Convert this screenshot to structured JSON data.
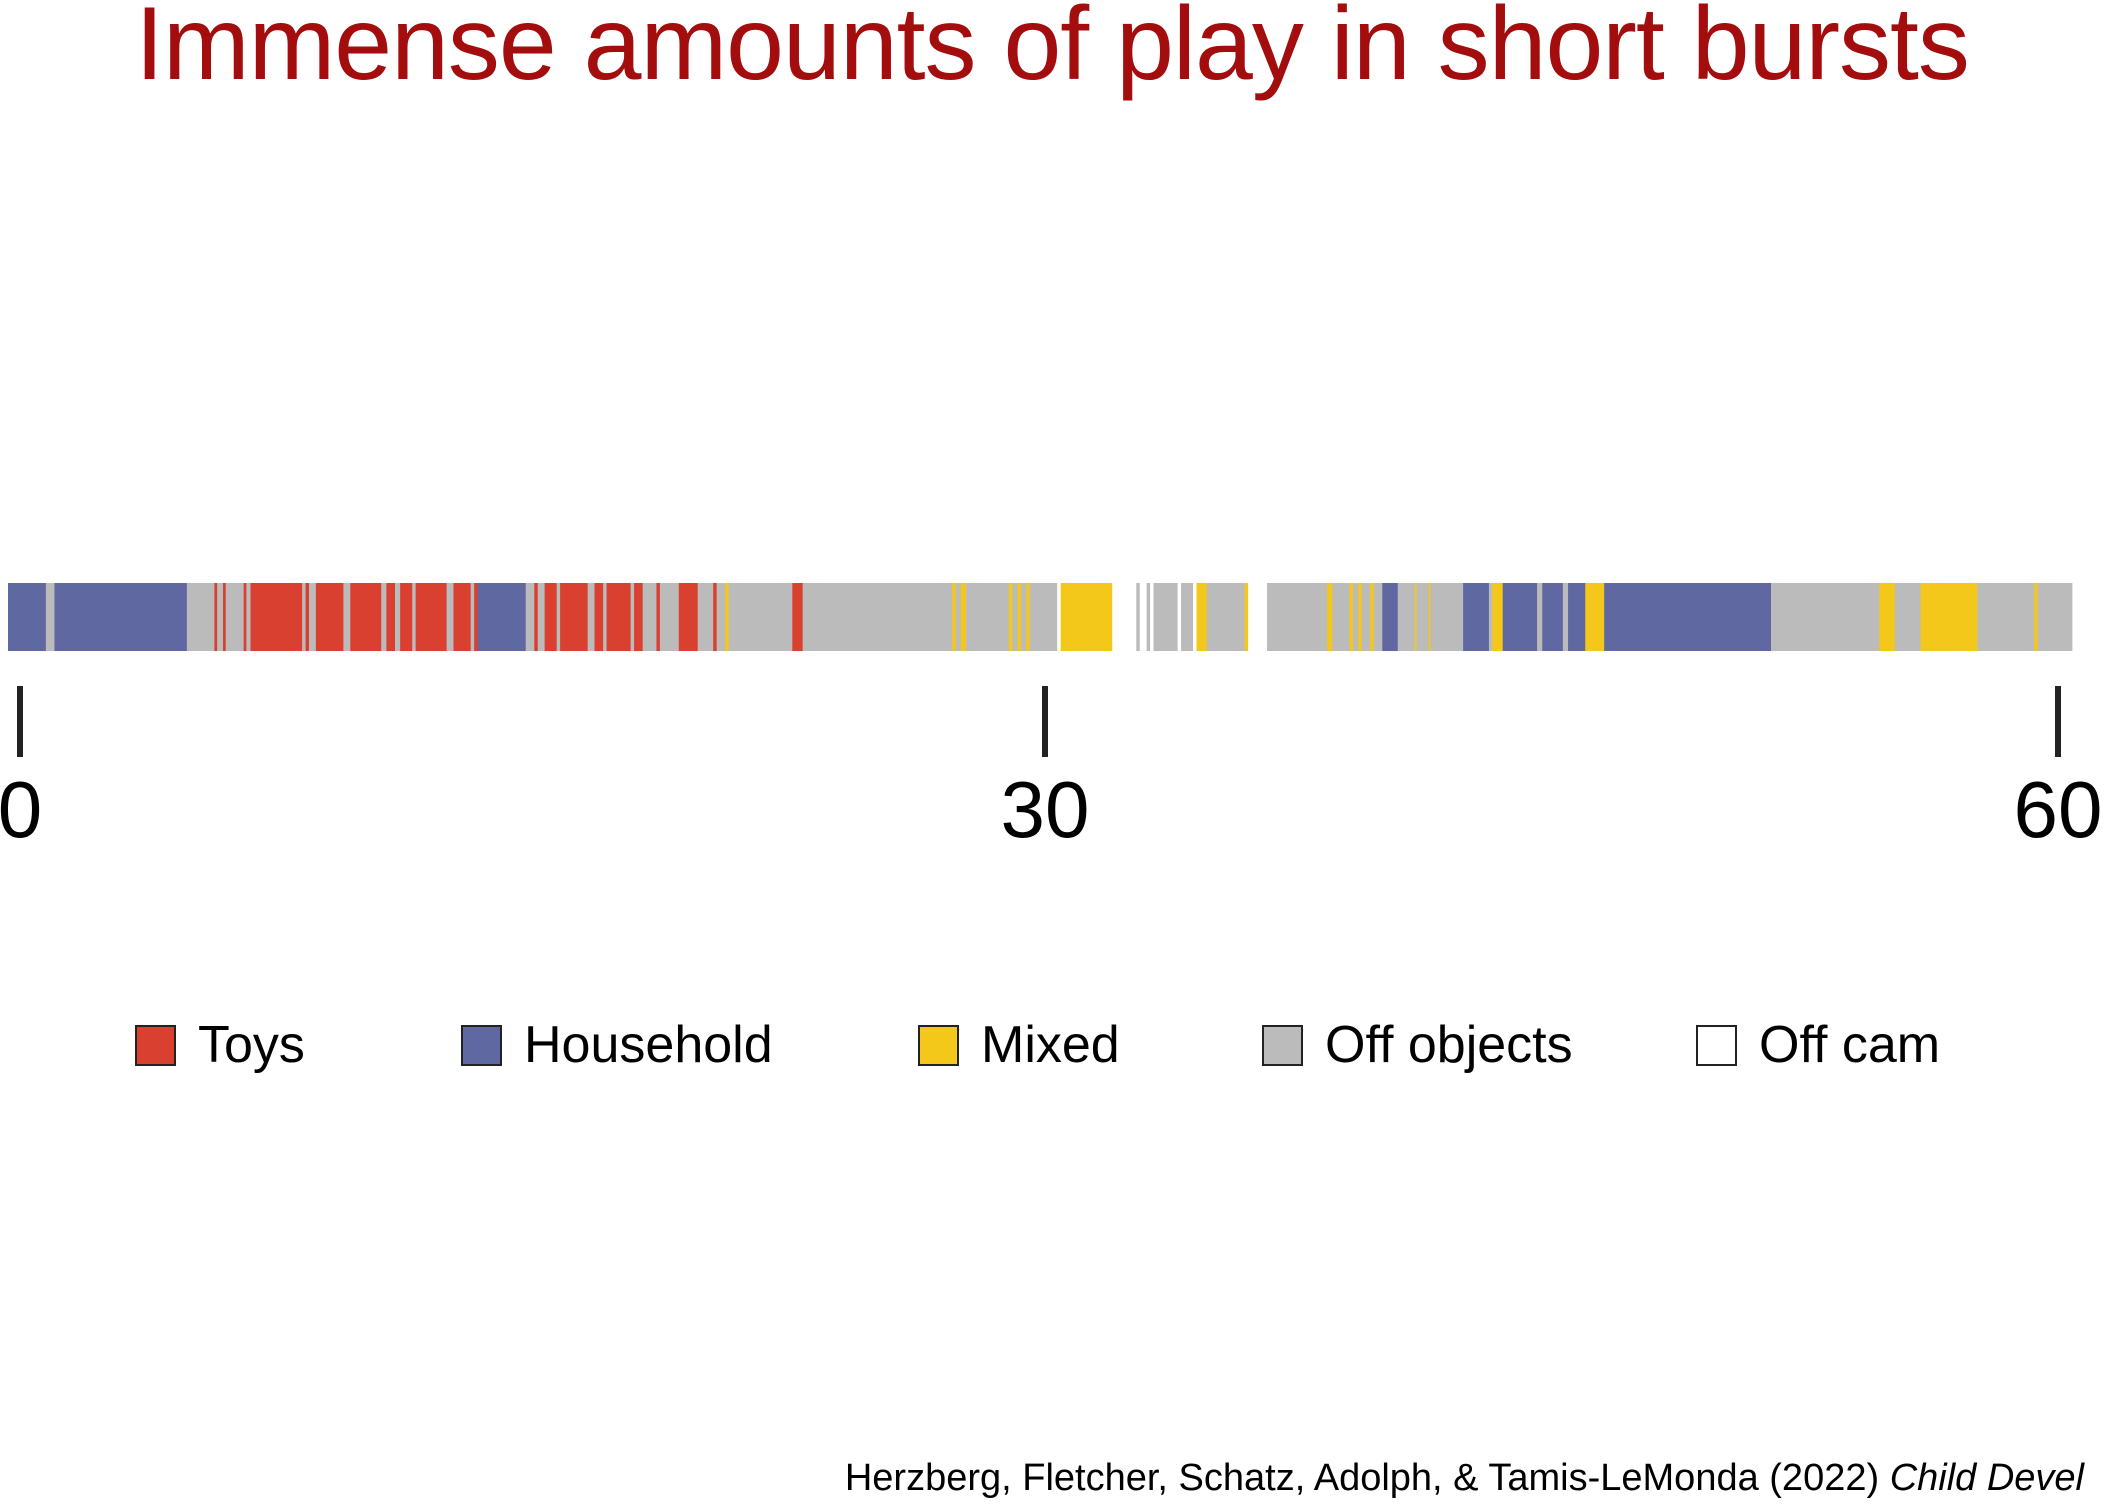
{
  "title": "Immense amounts of play in short bursts",
  "colors": {
    "title": "#a30d0d",
    "Toys": "#d94030",
    "Household": "#6068a2",
    "Mixed": "#f4c81a",
    "Off objects": "#bbbbbb",
    "Off cam": "#ffffff",
    "tick": "#222222"
  },
  "citation": {
    "authors": "Herzberg, Fletcher, Schatz, Adolph, & Tamis-LeMonda (2022)",
    "journal": "Child Devel"
  },
  "chart_data": {
    "type": "bar",
    "orientation": "horizontal",
    "xlim": [
      0,
      60
    ],
    "xticks": [
      0,
      30,
      60
    ],
    "xlabel": "",
    "ylabel": "",
    "legend": [
      "Toys",
      "Household",
      "Mixed",
      "Off objects",
      "Off cam"
    ],
    "legend_placement": "bottom",
    "segments": [
      {
        "start": 0.0,
        "end": 1.1,
        "category": "Household"
      },
      {
        "start": 1.1,
        "end": 1.35,
        "category": "Off objects"
      },
      {
        "start": 1.35,
        "end": 5.2,
        "category": "Household"
      },
      {
        "start": 5.2,
        "end": 6.0,
        "category": "Off objects"
      },
      {
        "start": 6.0,
        "end": 6.08,
        "category": "Toys"
      },
      {
        "start": 6.08,
        "end": 6.25,
        "category": "Off objects"
      },
      {
        "start": 6.25,
        "end": 6.33,
        "category": "Toys"
      },
      {
        "start": 6.33,
        "end": 6.85,
        "category": "Off objects"
      },
      {
        "start": 6.85,
        "end": 6.93,
        "category": "Toys"
      },
      {
        "start": 6.93,
        "end": 7.05,
        "category": "Off objects"
      },
      {
        "start": 7.05,
        "end": 8.55,
        "category": "Toys"
      },
      {
        "start": 8.55,
        "end": 8.65,
        "category": "Off objects"
      },
      {
        "start": 8.65,
        "end": 8.75,
        "category": "Toys"
      },
      {
        "start": 8.75,
        "end": 8.95,
        "category": "Off objects"
      },
      {
        "start": 8.95,
        "end": 9.75,
        "category": "Toys"
      },
      {
        "start": 9.75,
        "end": 9.95,
        "category": "Off objects"
      },
      {
        "start": 9.95,
        "end": 10.85,
        "category": "Toys"
      },
      {
        "start": 10.85,
        "end": 11.0,
        "category": "Off objects"
      },
      {
        "start": 11.0,
        "end": 11.25,
        "category": "Toys"
      },
      {
        "start": 11.25,
        "end": 11.4,
        "category": "Off objects"
      },
      {
        "start": 11.4,
        "end": 11.75,
        "category": "Toys"
      },
      {
        "start": 11.75,
        "end": 11.85,
        "category": "Off objects"
      },
      {
        "start": 11.85,
        "end": 12.75,
        "category": "Toys"
      },
      {
        "start": 12.75,
        "end": 12.95,
        "category": "Off objects"
      },
      {
        "start": 12.95,
        "end": 13.45,
        "category": "Toys"
      },
      {
        "start": 13.45,
        "end": 13.55,
        "category": "Off objects"
      },
      {
        "start": 13.55,
        "end": 13.65,
        "category": "Toys"
      },
      {
        "start": 13.65,
        "end": 15.05,
        "category": "Household"
      },
      {
        "start": 15.05,
        "end": 15.3,
        "category": "Off objects"
      },
      {
        "start": 15.3,
        "end": 15.4,
        "category": "Toys"
      },
      {
        "start": 15.4,
        "end": 15.6,
        "category": "Off objects"
      },
      {
        "start": 15.6,
        "end": 15.95,
        "category": "Toys"
      },
      {
        "start": 15.95,
        "end": 16.05,
        "category": "Off objects"
      },
      {
        "start": 16.05,
        "end": 16.85,
        "category": "Toys"
      },
      {
        "start": 16.85,
        "end": 17.05,
        "category": "Off objects"
      },
      {
        "start": 17.05,
        "end": 17.3,
        "category": "Toys"
      },
      {
        "start": 17.3,
        "end": 17.4,
        "category": "Off objects"
      },
      {
        "start": 17.4,
        "end": 18.1,
        "category": "Toys"
      },
      {
        "start": 18.1,
        "end": 18.2,
        "category": "Off objects"
      },
      {
        "start": 18.2,
        "end": 18.45,
        "category": "Toys"
      },
      {
        "start": 18.45,
        "end": 18.85,
        "category": "Off objects"
      },
      {
        "start": 18.85,
        "end": 18.95,
        "category": "Toys"
      },
      {
        "start": 18.95,
        "end": 19.5,
        "category": "Off objects"
      },
      {
        "start": 19.5,
        "end": 20.05,
        "category": "Toys"
      },
      {
        "start": 20.05,
        "end": 20.5,
        "category": "Off objects"
      },
      {
        "start": 20.5,
        "end": 20.6,
        "category": "Toys"
      },
      {
        "start": 20.6,
        "end": 20.85,
        "category": "Off objects"
      },
      {
        "start": 20.85,
        "end": 20.95,
        "category": "Mixed"
      },
      {
        "start": 20.95,
        "end": 22.8,
        "category": "Off objects"
      },
      {
        "start": 22.8,
        "end": 23.1,
        "category": "Toys"
      },
      {
        "start": 23.1,
        "end": 27.45,
        "category": "Off objects"
      },
      {
        "start": 27.45,
        "end": 27.55,
        "category": "Mixed"
      },
      {
        "start": 27.55,
        "end": 27.7,
        "category": "Off objects"
      },
      {
        "start": 27.7,
        "end": 27.85,
        "category": "Mixed"
      },
      {
        "start": 27.85,
        "end": 29.1,
        "category": "Off objects"
      },
      {
        "start": 29.1,
        "end": 29.2,
        "category": "Mixed"
      },
      {
        "start": 29.2,
        "end": 29.35,
        "category": "Off objects"
      },
      {
        "start": 29.35,
        "end": 29.45,
        "category": "Mixed"
      },
      {
        "start": 29.45,
        "end": 29.6,
        "category": "Off objects"
      },
      {
        "start": 29.6,
        "end": 29.7,
        "category": "Mixed"
      },
      {
        "start": 29.7,
        "end": 30.5,
        "category": "Off objects"
      },
      {
        "start": 30.5,
        "end": 30.6,
        "category": "Off cam"
      },
      {
        "start": 30.6,
        "end": 32.1,
        "category": "Mixed"
      },
      {
        "start": 32.1,
        "end": 32.8,
        "category": "Off cam"
      },
      {
        "start": 32.8,
        "end": 32.9,
        "category": "Off objects"
      },
      {
        "start": 32.9,
        "end": 33.1,
        "category": "Off cam"
      },
      {
        "start": 33.1,
        "end": 33.2,
        "category": "Off objects"
      },
      {
        "start": 33.2,
        "end": 33.3,
        "category": "Off cam"
      },
      {
        "start": 33.3,
        "end": 34.0,
        "category": "Off objects"
      },
      {
        "start": 34.0,
        "end": 34.1,
        "category": "Off cam"
      },
      {
        "start": 34.1,
        "end": 34.45,
        "category": "Off objects"
      },
      {
        "start": 34.45,
        "end": 34.55,
        "category": "Off cam"
      },
      {
        "start": 34.55,
        "end": 34.85,
        "category": "Mixed"
      },
      {
        "start": 34.85,
        "end": 35.95,
        "category": "Off objects"
      },
      {
        "start": 35.95,
        "end": 36.05,
        "category": "Mixed"
      },
      {
        "start": 36.05,
        "end": 36.6,
        "category": "Off cam"
      },
      {
        "start": 36.6,
        "end": 38.35,
        "category": "Off objects"
      },
      {
        "start": 38.35,
        "end": 38.5,
        "category": "Mixed"
      },
      {
        "start": 38.5,
        "end": 39.0,
        "category": "Off objects"
      },
      {
        "start": 39.0,
        "end": 39.1,
        "category": "Mixed"
      },
      {
        "start": 39.1,
        "end": 39.25,
        "category": "Off objects"
      },
      {
        "start": 39.25,
        "end": 39.35,
        "category": "Mixed"
      },
      {
        "start": 39.35,
        "end": 39.6,
        "category": "Off objects"
      },
      {
        "start": 39.6,
        "end": 39.7,
        "category": "Mixed"
      },
      {
        "start": 39.7,
        "end": 39.95,
        "category": "Off objects"
      },
      {
        "start": 39.95,
        "end": 40.4,
        "category": "Household"
      },
      {
        "start": 40.4,
        "end": 40.9,
        "category": "Off objects"
      },
      {
        "start": 40.9,
        "end": 40.95,
        "category": "Mixed"
      },
      {
        "start": 40.95,
        "end": 41.3,
        "category": "Off objects"
      },
      {
        "start": 41.3,
        "end": 41.35,
        "category": "Mixed"
      },
      {
        "start": 41.35,
        "end": 42.3,
        "category": "Off objects"
      },
      {
        "start": 42.3,
        "end": 43.05,
        "category": "Household"
      },
      {
        "start": 43.05,
        "end": 43.15,
        "category": "Off objects"
      },
      {
        "start": 43.15,
        "end": 43.45,
        "category": "Mixed"
      },
      {
        "start": 43.45,
        "end": 44.45,
        "category": "Household"
      },
      {
        "start": 44.45,
        "end": 44.6,
        "category": "Off objects"
      },
      {
        "start": 44.6,
        "end": 45.2,
        "category": "Household"
      },
      {
        "start": 45.2,
        "end": 45.35,
        "category": "Off objects"
      },
      {
        "start": 45.35,
        "end": 45.85,
        "category": "Household"
      },
      {
        "start": 45.85,
        "end": 46.4,
        "category": "Mixed"
      },
      {
        "start": 46.4,
        "end": 51.25,
        "category": "Household"
      },
      {
        "start": 51.25,
        "end": 54.4,
        "category": "Off objects"
      },
      {
        "start": 54.4,
        "end": 54.85,
        "category": "Mixed"
      },
      {
        "start": 54.85,
        "end": 55.6,
        "category": "Off objects"
      },
      {
        "start": 55.6,
        "end": 57.25,
        "category": "Mixed"
      },
      {
        "start": 57.25,
        "end": 58.9,
        "category": "Off objects"
      },
      {
        "start": 58.9,
        "end": 59.0,
        "category": "Mixed"
      },
      {
        "start": 59.0,
        "end": 60.0,
        "category": "Off objects"
      }
    ]
  }
}
